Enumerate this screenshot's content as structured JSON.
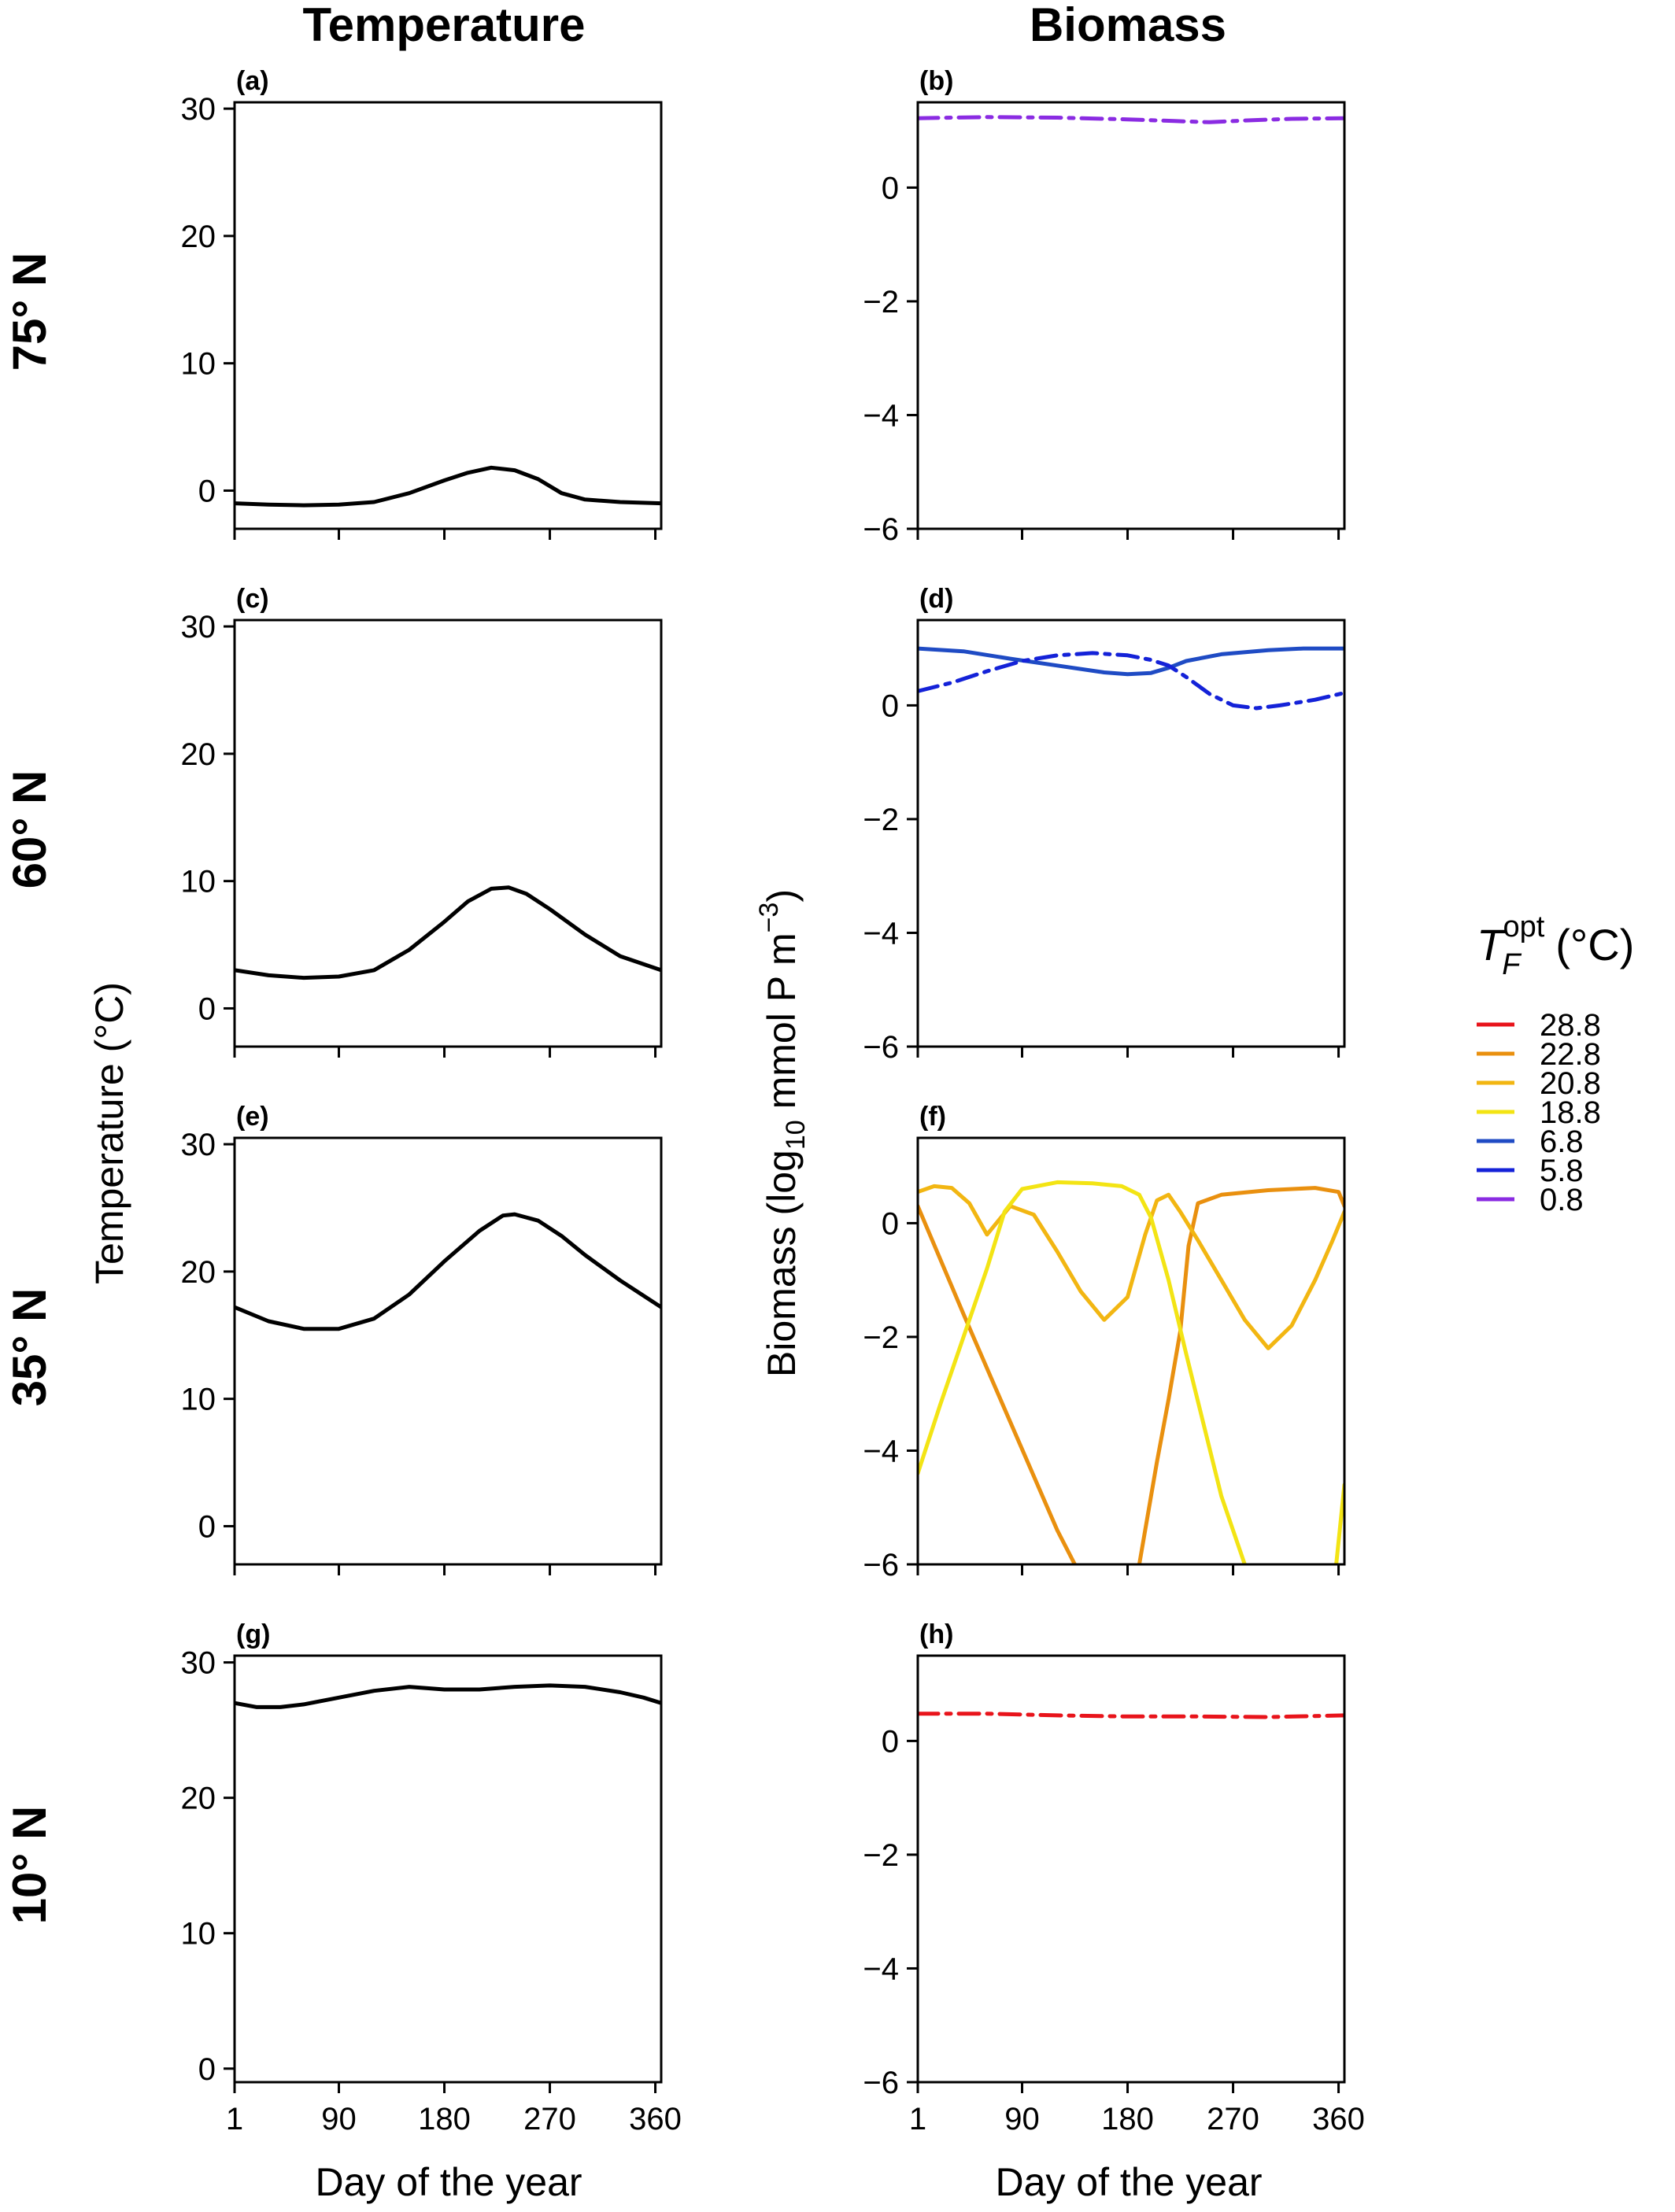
{
  "col_titles": {
    "temperature": "Temperature",
    "biomass": "Biomass"
  },
  "row_titles": [
    "75° N",
    "60° N",
    "35° N",
    "10° N"
  ],
  "axis_titles": {
    "x_left": "Day of the year",
    "x_right": "Day of the year",
    "y_left": "Temperature (°C)",
    "y_right_prefix": "Biomass (log",
    "y_right_sub": "10",
    "y_right_mid": " mmol P m",
    "y_right_sup": "−3",
    "y_right_suffix": ")"
  },
  "legend": {
    "title_main": "T",
    "title_sub": "F",
    "title_sup": "opt",
    "title_unit": "(°C)",
    "entries": [
      {
        "label": "28.8",
        "color": "#e8141b"
      },
      {
        "label": "22.8",
        "color": "#e9900f"
      },
      {
        "label": "20.8",
        "color": "#f2b612"
      },
      {
        "label": "18.8",
        "color": "#f3e414"
      },
      {
        "label": "6.8",
        "color": "#1f4bc4"
      },
      {
        "label": "5.8",
        "color": "#1422d8"
      },
      {
        "label": "0.8",
        "color": "#8a2be2"
      }
    ]
  },
  "chart_data": [
    {
      "panel": "(a)",
      "type": "line",
      "ylabel": "Temperature (°C)",
      "xlabel": "",
      "xlim": [
        1,
        365
      ],
      "ylim": [
        -3,
        30.5
      ],
      "xticks": [
        "1",
        "90",
        "180",
        "270",
        "360"
      ],
      "yticks": [
        "0",
        "10",
        "20",
        "30"
      ],
      "series": [
        {
          "color": "#000000",
          "style": "solid",
          "x": [
            1,
            30,
            60,
            90,
            120,
            150,
            180,
            200,
            220,
            240,
            260,
            280,
            300,
            330,
            365
          ],
          "y": [
            -1.0,
            -1.1,
            -1.15,
            -1.1,
            -0.9,
            -0.2,
            0.8,
            1.4,
            1.8,
            1.6,
            0.9,
            -0.2,
            -0.7,
            -0.9,
            -1.0
          ]
        }
      ]
    },
    {
      "panel": "(b)",
      "type": "line",
      "xlabel": "",
      "xlim": [
        1,
        365
      ],
      "ylim": [
        -6,
        1.5
      ],
      "xticks": [
        "1",
        "90",
        "180",
        "270",
        "360"
      ],
      "yticks": [
        "0",
        "−2",
        "−4",
        "−6"
      ],
      "series": [
        {
          "color": "#8a2be2",
          "style": "dashdot",
          "x": [
            1,
            60,
            120,
            180,
            220,
            250,
            280,
            320,
            365
          ],
          "y": [
            1.22,
            1.24,
            1.23,
            1.2,
            1.17,
            1.15,
            1.18,
            1.21,
            1.22
          ]
        }
      ]
    },
    {
      "panel": "(c)",
      "type": "line",
      "xlabel": "",
      "xlim": [
        1,
        365
      ],
      "ylim": [
        -3,
        30.5
      ],
      "xticks": [
        "1",
        "90",
        "180",
        "270",
        "360"
      ],
      "yticks": [
        "0",
        "10",
        "20",
        "30"
      ],
      "series": [
        {
          "color": "#000000",
          "style": "solid",
          "x": [
            1,
            30,
            60,
            90,
            120,
            150,
            180,
            200,
            220,
            235,
            250,
            270,
            300,
            330,
            365
          ],
          "y": [
            3.0,
            2.6,
            2.4,
            2.5,
            3.0,
            4.6,
            6.8,
            8.4,
            9.4,
            9.5,
            9.0,
            7.8,
            5.8,
            4.1,
            3.0
          ]
        }
      ]
    },
    {
      "panel": "(d)",
      "type": "line",
      "xlabel": "",
      "xlim": [
        1,
        365
      ],
      "ylim": [
        -6,
        1.5
      ],
      "xticks": [
        "1",
        "90",
        "180",
        "270",
        "360"
      ],
      "yticks": [
        "0",
        "−2",
        "−4",
        "−6"
      ],
      "series": [
        {
          "color": "#1f4bc4",
          "style": "solid",
          "x": [
            1,
            40,
            80,
            120,
            160,
            180,
            200,
            215,
            230,
            260,
            300,
            330,
            365
          ],
          "y": [
            1.0,
            0.95,
            0.82,
            0.7,
            0.58,
            0.55,
            0.57,
            0.66,
            0.78,
            0.9,
            0.97,
            1.0,
            1.0
          ]
        },
        {
          "color": "#1422d8",
          "style": "dashdot",
          "x": [
            1,
            30,
            60,
            90,
            120,
            150,
            180,
            200,
            215,
            230,
            250,
            270,
            290,
            310,
            340,
            365
          ],
          "y": [
            0.25,
            0.4,
            0.6,
            0.78,
            0.88,
            0.92,
            0.88,
            0.8,
            0.7,
            0.5,
            0.2,
            0.0,
            -0.05,
            0.0,
            0.1,
            0.22
          ]
        }
      ]
    },
    {
      "panel": "(e)",
      "type": "line",
      "ylabel": "Temperature (°C)",
      "xlabel": "",
      "xlim": [
        1,
        365
      ],
      "ylim": [
        -3,
        30.5
      ],
      "xticks": [
        "1",
        "90",
        "180",
        "270",
        "360"
      ],
      "yticks": [
        "0",
        "10",
        "20",
        "30"
      ],
      "series": [
        {
          "color": "#000000",
          "style": "solid",
          "x": [
            1,
            30,
            60,
            90,
            120,
            150,
            180,
            210,
            230,
            240,
            260,
            280,
            300,
            330,
            365
          ],
          "y": [
            17.2,
            16.1,
            15.5,
            15.5,
            16.3,
            18.2,
            20.8,
            23.2,
            24.4,
            24.5,
            24.0,
            22.8,
            21.3,
            19.3,
            17.2
          ]
        }
      ]
    },
    {
      "panel": "(f)",
      "type": "line",
      "xlabel": "",
      "xlim": [
        1,
        365
      ],
      "ylim": [
        -6,
        1.5
      ],
      "xticks": [
        "1",
        "90",
        "180",
        "270",
        "360"
      ],
      "yticks": [
        "0",
        "−2",
        "−4",
        "−6"
      ],
      "series": [
        {
          "color": "#e9900f",
          "style": "solid",
          "x": [
            1,
            40,
            80,
            120,
            135
          ],
          "y": [
            0.3,
            -1.6,
            -3.5,
            -5.4,
            -6.0
          ]
        },
        {
          "color": "#e9900f",
          "style": "solid",
          "x": [
            190,
            205,
            215,
            225,
            232,
            240,
            260,
            300,
            340,
            360,
            365
          ],
          "y": [
            -6.0,
            -4.2,
            -3.1,
            -1.9,
            -0.4,
            0.35,
            0.5,
            0.58,
            0.62,
            0.55,
            0.3
          ]
        },
        {
          "color": "#f2b612",
          "style": "solid",
          "x": [
            1,
            15,
            30,
            45,
            60,
            80,
            100,
            120,
            140,
            160,
            180,
            195,
            205,
            215,
            225,
            240,
            260,
            280,
            300,
            320,
            340,
            355,
            365
          ],
          "y": [
            0.55,
            0.65,
            0.62,
            0.35,
            -0.2,
            0.3,
            0.15,
            -0.5,
            -1.2,
            -1.7,
            -1.3,
            -0.2,
            0.4,
            0.5,
            0.2,
            -0.3,
            -1.0,
            -1.7,
            -2.2,
            -1.8,
            -1.0,
            -0.3,
            0.2
          ]
        },
        {
          "color": "#f3e414",
          "style": "solid",
          "x": [
            1,
            20,
            40,
            60,
            75,
            90,
            120,
            150,
            175,
            190,
            200,
            215,
            230,
            260,
            280
          ],
          "y": [
            -4.4,
            -3.2,
            -2.0,
            -0.8,
            0.2,
            0.6,
            0.72,
            0.7,
            0.65,
            0.5,
            0.1,
            -1.0,
            -2.3,
            -4.8,
            -6.0
          ]
        },
        {
          "color": "#f3e414",
          "style": "solid",
          "x": [
            358,
            365
          ],
          "y": [
            -6.0,
            -4.6
          ]
        }
      ]
    },
    {
      "panel": "(g)",
      "type": "line",
      "xlabel": "Day of the year",
      "xlim": [
        1,
        365
      ],
      "ylim": [
        -1,
        30.5
      ],
      "xticks": [
        "1",
        "90",
        "180",
        "270",
        "360"
      ],
      "yticks": [
        "0",
        "10",
        "20",
        "30"
      ],
      "series": [
        {
          "color": "#000000",
          "style": "solid",
          "x": [
            1,
            20,
            40,
            60,
            90,
            120,
            150,
            180,
            210,
            240,
            270,
            300,
            330,
            350,
            365
          ],
          "y": [
            27.0,
            26.7,
            26.7,
            26.9,
            27.4,
            27.9,
            28.2,
            28.0,
            28.0,
            28.2,
            28.3,
            28.2,
            27.8,
            27.4,
            27.0
          ]
        }
      ]
    },
    {
      "panel": "(h)",
      "type": "line",
      "xlabel": "Day of the year",
      "xlim": [
        1,
        365
      ],
      "ylim": [
        -6,
        1.5
      ],
      "xticks": [
        "1",
        "90",
        "180",
        "270",
        "360"
      ],
      "yticks": [
        "0",
        "−2",
        "−4",
        "−6"
      ],
      "series": [
        {
          "color": "#e8141b",
          "style": "dashdot",
          "x": [
            1,
            60,
            120,
            180,
            240,
            300,
            365
          ],
          "y": [
            0.48,
            0.48,
            0.45,
            0.43,
            0.43,
            0.42,
            0.45
          ]
        }
      ]
    }
  ]
}
